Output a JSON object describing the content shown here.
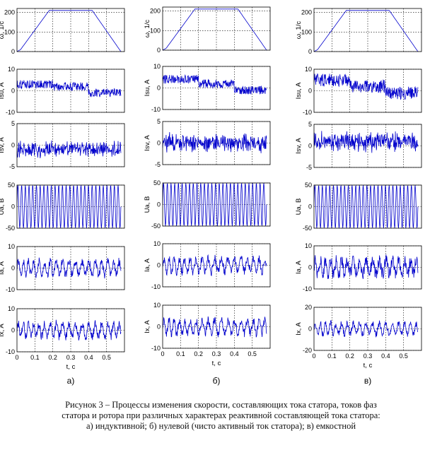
{
  "caption": {
    "line1": "Рисунок 3 – Процессы изменения скорости, составляющих тока статора, токов фаз",
    "line2": "статора и ротора при различных характерах реактивной составляющей тока статора:",
    "line3": "а) индуктивной; б) нулевой (чисто активный ток статора); в) емкостной"
  },
  "colors": {
    "signal": "#0000cc",
    "axis": "#000000",
    "grid": "#000000"
  },
  "chart_data": [
    {
      "panel": "а)",
      "type": "line",
      "xlabel": "t, c",
      "xlim": [
        0,
        0.6
      ],
      "xticks": [
        "0",
        "0.1",
        "0.2",
        "0.3",
        "0.4",
        "0.5"
      ],
      "grid": true,
      "subplots": [
        {
          "ylabel": "ω, 1/c",
          "ylim": [
            0,
            220
          ],
          "yticks": [
            "0",
            "100",
            "200"
          ],
          "series": [
            {
              "shape": "trapezoid",
              "x": [
                0,
                0.02,
                0.18,
                0.42,
                0.58
              ],
              "y": [
                0,
                10,
                210,
                210,
                0
              ]
            }
          ]
        },
        {
          "ylabel": "Isu, A",
          "ylim": [
            -10,
            10
          ],
          "yticks": [
            "-10",
            "0",
            "10"
          ],
          "series": [
            {
              "shape": "piecewise-mean-with-noise",
              "x": [
                0,
                0.2,
                0.2,
                0.4,
                0.4,
                0.58
              ],
              "mean": [
                3,
                3,
                2,
                2,
                -1,
                -1
              ],
              "noise_amplitude": 2
            }
          ]
        },
        {
          "ylabel": "Isv, A",
          "ylim": [
            -5,
            5
          ],
          "yticks": [
            "-5",
            "0",
            "5"
          ],
          "series": [
            {
              "shape": "noise",
              "mean": -1,
              "noise_amplitude": 1.5
            }
          ]
        },
        {
          "ylabel": "Ua, B",
          "ylim": [
            -50,
            50
          ],
          "yticks": [
            "-50",
            "0",
            "50"
          ],
          "series": [
            {
              "shape": "sine",
              "amplitude": 50,
              "cycles": 28
            }
          ]
        },
        {
          "ylabel": "Ia, A",
          "ylim": [
            -10,
            10
          ],
          "yticks": [
            "-10",
            "0",
            "10"
          ],
          "series": [
            {
              "shape": "oscillating-noise",
              "amplitude": 3,
              "noise_amplitude": 2
            }
          ]
        },
        {
          "ylabel": "Ix, A",
          "ylim": [
            -10,
            10
          ],
          "yticks": [
            "-10",
            "0",
            "10"
          ],
          "series": [
            {
              "shape": "oscillating-noise",
              "amplitude": 3,
              "noise_amplitude": 2
            }
          ]
        }
      ]
    },
    {
      "panel": "б)",
      "type": "line",
      "xlabel": "t, c",
      "xlim": [
        0,
        0.6
      ],
      "xticks": [
        "0",
        "0.1",
        "0.2",
        "0.3",
        "0.4",
        "0.5"
      ],
      "grid": true,
      "subplots": [
        {
          "ylabel": "ω, 1/c",
          "ylim": [
            0,
            220
          ],
          "yticks": [
            "0",
            "100",
            "200"
          ],
          "series": [
            {
              "shape": "trapezoid",
              "x": [
                0,
                0.02,
                0.18,
                0.42,
                0.58
              ],
              "y": [
                0,
                10,
                210,
                210,
                0
              ]
            }
          ]
        },
        {
          "ylabel": "Isu, A",
          "ylim": [
            -10,
            10
          ],
          "yticks": [
            "-10",
            "0",
            "10"
          ],
          "series": [
            {
              "shape": "piecewise-mean-with-noise",
              "x": [
                0,
                0.2,
                0.2,
                0.4,
                0.4,
                0.58
              ],
              "mean": [
                4,
                4,
                2,
                2,
                -1,
                -1
              ],
              "noise_amplitude": 2
            }
          ]
        },
        {
          "ylabel": "Isv, A",
          "ylim": [
            -5,
            5
          ],
          "yticks": [
            "-5",
            "0",
            "5"
          ],
          "series": [
            {
              "shape": "noise",
              "mean": 0,
              "noise_amplitude": 1.8
            }
          ]
        },
        {
          "ylabel": "Ua, B",
          "ylim": [
            -50,
            50
          ],
          "yticks": [
            "-50",
            "0",
            "50"
          ],
          "series": [
            {
              "shape": "sine",
              "amplitude": 50,
              "cycles": 28
            }
          ]
        },
        {
          "ylabel": "Ia, A",
          "ylim": [
            -10,
            10
          ],
          "yticks": [
            "-10",
            "0",
            "10"
          ],
          "series": [
            {
              "shape": "oscillating-noise",
              "amplitude": 3,
              "noise_amplitude": 2
            }
          ]
        },
        {
          "ylabel": "Ix, A",
          "ylim": [
            -10,
            10
          ],
          "yticks": [
            "-10",
            "0",
            "10"
          ],
          "series": [
            {
              "shape": "oscillating-noise",
              "amplitude": 3,
              "noise_amplitude": 2
            }
          ]
        }
      ]
    },
    {
      "panel": "в)",
      "type": "line",
      "xlabel": "t, c",
      "xlim": [
        0,
        0.6
      ],
      "xticks": [
        "0",
        "0.1",
        "0.2",
        "0.3",
        "0.4",
        "0.5"
      ],
      "grid": true,
      "subplots": [
        {
          "ylabel": "ω, 1/c",
          "ylim": [
            0,
            220
          ],
          "yticks": [
            "0",
            "100",
            "200"
          ],
          "series": [
            {
              "shape": "trapezoid",
              "x": [
                0,
                0.02,
                0.18,
                0.42,
                0.58
              ],
              "y": [
                0,
                10,
                210,
                210,
                0
              ]
            }
          ]
        },
        {
          "ylabel": "Isu, A",
          "ylim": [
            -10,
            10
          ],
          "yticks": [
            "-10",
            "0",
            "10"
          ],
          "series": [
            {
              "shape": "piecewise-mean-with-noise",
              "x": [
                0,
                0.2,
                0.2,
                0.4,
                0.4,
                0.58
              ],
              "mean": [
                5,
                5,
                2,
                2,
                -1,
                -1
              ],
              "noise_amplitude": 3
            }
          ]
        },
        {
          "ylabel": "Isv, A",
          "ylim": [
            -5,
            5
          ],
          "yticks": [
            "-5",
            "0",
            "5"
          ],
          "series": [
            {
              "shape": "noise",
              "mean": 1,
              "noise_amplitude": 1.8
            }
          ]
        },
        {
          "ylabel": "Ua, B",
          "ylim": [
            -50,
            50
          ],
          "yticks": [
            "-50",
            "0",
            "50"
          ],
          "series": [
            {
              "shape": "sine",
              "amplitude": 50,
              "cycles": 28
            }
          ]
        },
        {
          "ylabel": "Ia, A",
          "ylim": [
            -10,
            10
          ],
          "yticks": [
            "-10",
            "0",
            "10"
          ],
          "series": [
            {
              "shape": "oscillating-noise",
              "amplitude": 3,
              "noise_amplitude": 3
            }
          ]
        },
        {
          "ylabel": "Ix, A",
          "ylim": [
            -20,
            20
          ],
          "yticks": [
            "-20",
            "0",
            "20"
          ],
          "series": [
            {
              "shape": "oscillating-noise",
              "amplitude": 5,
              "noise_amplitude": 3
            }
          ]
        }
      ]
    }
  ]
}
